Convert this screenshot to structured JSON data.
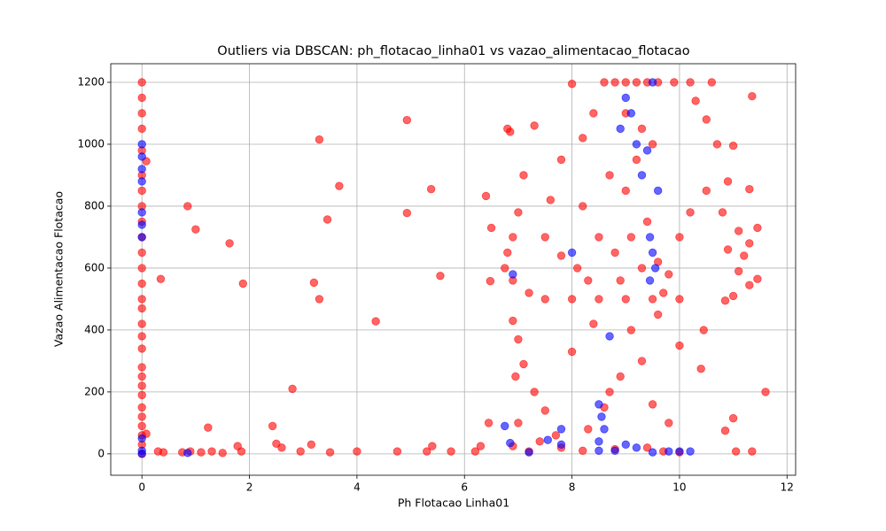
{
  "chart_data": {
    "type": "scatter",
    "title": "Outliers via DBSCAN: ph_flotacao_linha01 vs vazao_alimentacao_flotacao",
    "x_label": "Ph Flotacao Linha01",
    "y_label": "Vazao Alimentacao Flotacao",
    "xlim": [
      -0.58,
      12.16
    ],
    "ylim": [
      -69,
      1260
    ],
    "xticks": [
      0,
      2,
      4,
      6,
      8,
      10,
      12
    ],
    "yticks": [
      0,
      200,
      400,
      600,
      800,
      1000,
      1200
    ],
    "grid": true,
    "series": [
      {
        "color": "#ff0000",
        "x": [
          0,
          0,
          0,
          0,
          0,
          0,
          0,
          0,
          0,
          0,
          0,
          0,
          0,
          0,
          0,
          0,
          0,
          0,
          0,
          0,
          0,
          0,
          0,
          0,
          0,
          0,
          0,
          0,
          0.08,
          0.08,
          0.35,
          0.85,
          1.0,
          1.63,
          1.88,
          3.3,
          3.2,
          3.3,
          3.45,
          3.67,
          4.35,
          4.93,
          4.93,
          5.38,
          5.55,
          2.8,
          1.23,
          2.43,
          2.5,
          3.15,
          0.3,
          0.4,
          0.75,
          0.9,
          1.1,
          1.3,
          1.5,
          1.78,
          1.85,
          2.6,
          2.95,
          3.5,
          4.0,
          4.75,
          5.3,
          5.4,
          5.75,
          6.2,
          6.3,
          6.45,
          6.4,
          6.5,
          6.48,
          6.8,
          6.85,
          7.1,
          7.3,
          7.0,
          6.9,
          6.8,
          6.75,
          6.9,
          7.2,
          7.5,
          8.0,
          8.5,
          9.0,
          9.5,
          10.0,
          6.9,
          7.0,
          7.1,
          7.3,
          7.5,
          7.7,
          7.0,
          6.95,
          7.6,
          7.8,
          8.0,
          8.2,
          8.4,
          8.6,
          8.8,
          9.0,
          9.2,
          9.4,
          9.6,
          9.9,
          10.2,
          10.6,
          11.35,
          10.3,
          10.5,
          10.7,
          11.0,
          10.9,
          10.5,
          10.8,
          11.1,
          11.45,
          11.3,
          11.3,
          11.2,
          10.9,
          11.1,
          11.0,
          10.85,
          11.3,
          11.45,
          10.45,
          10.4,
          11.6,
          11.0,
          10.85,
          11.05,
          11.35,
          8.2,
          8.5,
          8.8,
          9.0,
          9.2,
          9.4,
          9.6,
          9.8,
          10.0,
          10.2,
          7.8,
          7.5,
          8.1,
          8.3,
          9.1,
          9.3,
          8.9,
          8.7,
          9.5,
          9.8,
          8.0,
          8.4,
          9.6,
          10.0,
          7.4,
          7.8,
          8.2,
          8.8,
          9.4,
          9.7,
          10.0,
          7.2,
          6.9,
          9.0,
          9.3,
          9.5,
          8.7,
          9.1,
          9.3,
          8.9,
          9.7,
          8.6,
          8.3
        ],
        "values": [
          1200,
          1150,
          1100,
          1050,
          980,
          900,
          850,
          800,
          750,
          700,
          650,
          600,
          550,
          500,
          470,
          420,
          380,
          340,
          280,
          250,
          220,
          190,
          150,
          120,
          90,
          60,
          30,
          0,
          945,
          65,
          565,
          800,
          725,
          680,
          550,
          1015,
          553,
          500,
          757,
          865,
          428,
          1078,
          778,
          855,
          575,
          210,
          85,
          90,
          33,
          30,
          8,
          5,
          5,
          8,
          5,
          8,
          3,
          25,
          8,
          20,
          8,
          5,
          8,
          8,
          8,
          25,
          8,
          8,
          25,
          100,
          833,
          730,
          558,
          1050,
          1040,
          900,
          1060,
          780,
          700,
          650,
          600,
          560,
          520,
          500,
          500,
          500,
          500,
          500,
          500,
          430,
          370,
          290,
          200,
          140,
          60,
          100,
          250,
          820,
          950,
          1195,
          1020,
          1100,
          1200,
          1200,
          1200,
          1200,
          1200,
          1200,
          1200,
          1200,
          1200,
          1155,
          1140,
          1080,
          1000,
          995,
          880,
          850,
          780,
          720,
          730,
          855,
          680,
          640,
          660,
          590,
          510,
          495,
          545,
          565,
          400,
          275,
          200,
          115,
          75,
          8,
          8,
          800,
          700,
          650,
          850,
          950,
          750,
          620,
          580,
          700,
          780,
          640,
          700,
          600,
          560,
          400,
          300,
          250,
          200,
          160,
          100,
          330,
          420,
          450,
          350,
          40,
          20,
          10,
          15,
          20,
          8,
          5,
          8,
          25,
          1100,
          1050,
          1000,
          900,
          700,
          600,
          560,
          520,
          150,
          80
        ]
      },
      {
        "color": "#0000ff",
        "x": [
          0,
          0,
          0,
          0,
          0,
          0,
          0,
          0,
          0,
          0,
          0.85,
          9.0,
          9.1,
          8.9,
          9.2,
          9.4,
          9.5,
          9.3,
          9.6,
          8.7,
          9.45,
          9.5,
          9.55,
          9.45,
          8.5,
          8.55,
          8.6,
          8.5,
          8.5,
          9.0,
          9.2,
          8.8,
          9.5,
          7.8,
          7.55,
          7.8,
          6.75,
          6.85,
          7.2,
          10.2,
          10.0,
          9.8,
          6.9,
          8.0
        ],
        "values": [
          1000,
          960,
          920,
          880,
          780,
          740,
          700,
          50,
          10,
          0,
          3,
          1150,
          1100,
          1050,
          1000,
          980,
          1200,
          900,
          850,
          380,
          700,
          650,
          600,
          560,
          160,
          120,
          80,
          40,
          10,
          30,
          20,
          10,
          5,
          30,
          45,
          80,
          90,
          35,
          5,
          8,
          8,
          8,
          580,
          650
        ]
      }
    ]
  }
}
